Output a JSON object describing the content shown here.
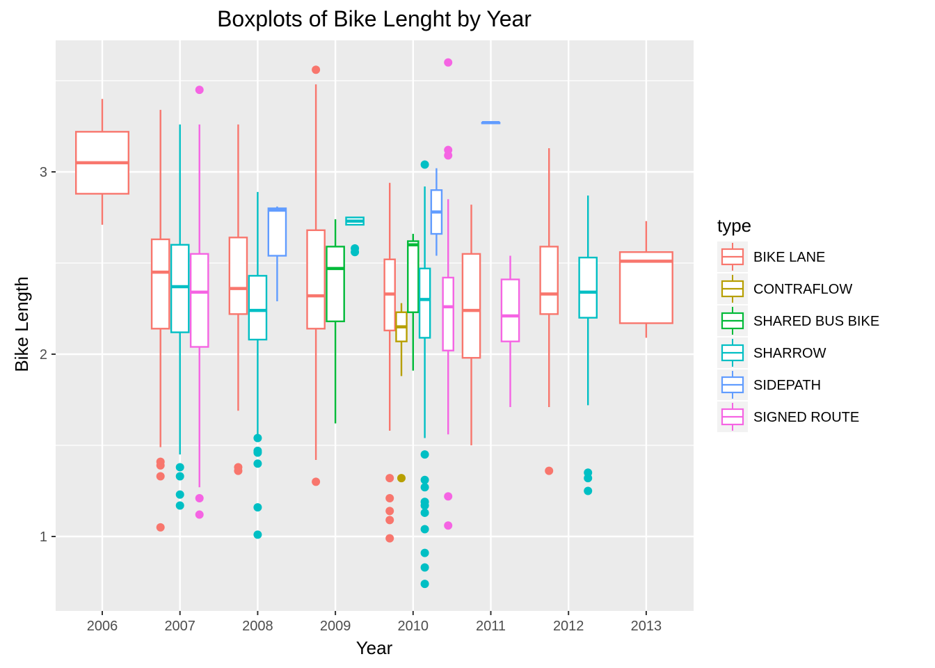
{
  "chart_data": {
    "type": "box",
    "title": "Boxplots of Bike Lenght by Year",
    "xlabel": "Year",
    "ylabel": "Bike Length",
    "categories": [
      "2006",
      "2007",
      "2008",
      "2009",
      "2010",
      "2011",
      "2012",
      "2013"
    ],
    "ylim": [
      0.6,
      3.8
    ],
    "yticks": [
      1,
      2,
      3
    ],
    "yticks_minor": [
      1.5,
      2.5,
      3.5
    ],
    "grid": true,
    "legend": {
      "title": "type",
      "position": "right"
    },
    "series": [
      {
        "name": "BIKE LANE",
        "color": "#F8766D",
        "boxes": [
          {
            "year": "2006",
            "offset": 0,
            "width": 1,
            "min": 2.71,
            "q1": 2.88,
            "median": 3.05,
            "q3": 3.22,
            "max": 3.4,
            "outliers": []
          },
          {
            "year": "2007",
            "offset": -1,
            "width": 3,
            "min": 1.49,
            "q1": 2.14,
            "median": 2.45,
            "q3": 2.63,
            "max": 3.34,
            "outliers": [
              1.41,
              1.39,
              1.33,
              1.05
            ]
          },
          {
            "year": "2008",
            "offset": -1,
            "width": 3,
            "min": 1.69,
            "q1": 2.22,
            "median": 2.36,
            "q3": 2.64,
            "max": 3.26,
            "outliers": [
              1.38,
              1.36
            ]
          },
          {
            "year": "2009",
            "offset": -1,
            "width": 3,
            "min": 1.42,
            "q1": 2.14,
            "median": 2.32,
            "q3": 2.68,
            "max": 3.48,
            "outliers": [
              1.3,
              3.56
            ]
          },
          {
            "year": "2010",
            "offset": -2,
            "width": 5,
            "min": 1.58,
            "q1": 2.13,
            "median": 2.33,
            "q3": 2.52,
            "max": 2.94,
            "outliers": [
              1.32,
              1.21,
              1.14,
              1.09,
              0.99
            ]
          },
          {
            "year": "2011",
            "offset": -1,
            "width": 3,
            "min": 1.5,
            "q1": 1.98,
            "median": 2.24,
            "q3": 2.55,
            "max": 2.82,
            "outliers": []
          },
          {
            "year": "2012",
            "offset": -1,
            "width": 3,
            "min": 1.71,
            "q1": 2.22,
            "median": 2.33,
            "q3": 2.59,
            "max": 3.13,
            "outliers": [
              1.36
            ]
          },
          {
            "year": "2013",
            "offset": 0,
            "width": 1,
            "min": 2.09,
            "q1": 2.17,
            "median": 2.51,
            "q3": 2.56,
            "max": 2.73,
            "outliers": []
          }
        ]
      },
      {
        "name": "CONTRAFLOW",
        "color": "#B79F00",
        "boxes": [
          {
            "year": "2010",
            "offset": -1,
            "width": 5,
            "min": 1.88,
            "q1": 2.07,
            "median": 2.15,
            "q3": 2.23,
            "max": 2.28,
            "outliers": [
              1.32
            ]
          }
        ]
      },
      {
        "name": "SHARED BUS BIKE",
        "color": "#00BA38",
        "boxes": [
          {
            "year": "2009",
            "offset": 0,
            "width": 3,
            "min": 1.62,
            "q1": 2.18,
            "median": 2.47,
            "q3": 2.59,
            "max": 2.74,
            "outliers": []
          },
          {
            "year": "2010",
            "offset": 0,
            "width": 5,
            "min": 1.91,
            "q1": 2.23,
            "median": 2.6,
            "q3": 2.62,
            "max": 2.66,
            "outliers": []
          }
        ]
      },
      {
        "name": "SHARROW",
        "color": "#00BFC4",
        "boxes": [
          {
            "year": "2007",
            "offset": 0,
            "width": 3,
            "min": 1.45,
            "q1": 2.12,
            "median": 2.37,
            "q3": 2.6,
            "max": 3.26,
            "outliers": [
              1.38,
              1.33,
              1.23,
              1.17
            ]
          },
          {
            "year": "2008",
            "offset": 0,
            "width": 3,
            "min": 1.55,
            "q1": 2.08,
            "median": 2.24,
            "q3": 2.43,
            "max": 2.89,
            "outliers": [
              1.54,
              1.47,
              1.46,
              1.4,
              1.16,
              1.01
            ]
          },
          {
            "year": "2009",
            "offset": 1,
            "width": 3,
            "min": 2.71,
            "q1": 2.71,
            "median": 2.73,
            "q3": 2.75,
            "max": 2.75,
            "outliers": [
              2.58,
              2.56
            ]
          },
          {
            "year": "2010",
            "offset": 1,
            "width": 5,
            "min": 1.54,
            "q1": 2.09,
            "median": 2.3,
            "q3": 2.47,
            "max": 2.92,
            "outliers": [
              3.04,
              1.45,
              1.31,
              1.27,
              1.19,
              1.17,
              1.13,
              1.04,
              0.91,
              0.83,
              0.74
            ]
          },
          {
            "year": "2012",
            "offset": 1,
            "width": 3,
            "min": 1.72,
            "q1": 2.2,
            "median": 2.34,
            "q3": 2.53,
            "max": 2.87,
            "outliers": [
              1.35,
              1.32,
              1.25
            ]
          }
        ]
      },
      {
        "name": "SIDEPATH",
        "color": "#619CFF",
        "boxes": [
          {
            "year": "2008",
            "offset": 1,
            "width": 3,
            "min": 2.29,
            "q1": 2.54,
            "median": 2.79,
            "q3": 2.8,
            "max": 2.81,
            "outliers": []
          },
          {
            "year": "2010",
            "offset": 2,
            "width": 5,
            "min": 2.54,
            "q1": 2.66,
            "median": 2.78,
            "q3": 2.9,
            "max": 3.02,
            "outliers": []
          },
          {
            "year": "2011",
            "offset": 0,
            "width": 3,
            "min": 3.27,
            "q1": 3.27,
            "median": 3.27,
            "q3": 3.27,
            "max": 3.27,
            "outliers": []
          }
        ]
      },
      {
        "name": "SIGNED ROUTE",
        "color": "#F564E3",
        "boxes": [
          {
            "year": "2007",
            "offset": 1,
            "width": 3,
            "min": 1.27,
            "q1": 2.04,
            "median": 2.34,
            "q3": 2.55,
            "max": 3.26,
            "outliers": [
              3.45,
              1.21,
              1.12
            ]
          },
          {
            "year": "2010",
            "offset": 3,
            "width": 5,
            "min": 1.56,
            "q1": 2.02,
            "median": 2.26,
            "q3": 2.42,
            "max": 2.85,
            "outliers": [
              3.6,
              3.12,
              3.09,
              1.22,
              1.06
            ]
          },
          {
            "year": "2011",
            "offset": 1,
            "width": 3,
            "min": 1.71,
            "q1": 2.07,
            "median": 2.21,
            "q3": 2.41,
            "max": 2.54,
            "outliers": []
          }
        ]
      }
    ]
  }
}
